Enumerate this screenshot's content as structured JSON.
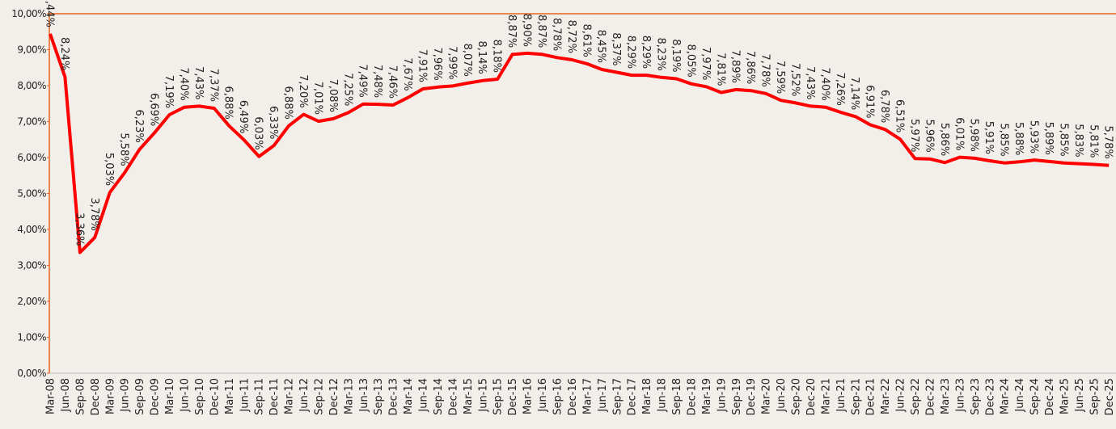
{
  "chart_data": {
    "type": "line",
    "categories": [
      "Mar-08",
      "Jun-08",
      "Sep-08",
      "Dec-08",
      "Mar-09",
      "Jun-09",
      "Sep-09",
      "Dec-09",
      "Mar-10",
      "Jun-10",
      "Sep-10",
      "Dec-10",
      "Mar-11",
      "Jun-11",
      "Sep-11",
      "Dec-11",
      "Mar-12",
      "Jun-12",
      "Sep-12",
      "Dec-12",
      "Mar-13",
      "Jun-13",
      "Sep-13",
      "Dec-13",
      "Mar-14",
      "Jun-14",
      "Sep-14",
      "Dec-14",
      "Mar-15",
      "Jun-15",
      "Sep-15",
      "Dec-15",
      "Mar-16",
      "Jun-16",
      "Sep-16",
      "Dec-16",
      "Mar-17",
      "Jun-17",
      "Sep-17",
      "Dec-17",
      "Mar-18",
      "Jun-18",
      "Sep-18",
      "Dec-18",
      "Mar-19",
      "Jun-19",
      "Sep-19",
      "Dec-19",
      "Mar-20",
      "Jun-20",
      "Sep-20",
      "Dec-20",
      "Mar-21",
      "Jun-21",
      "Sep-21",
      "Dec-21",
      "Mar-22",
      "Jun-22",
      "Sep-22",
      "Dec-22",
      "Mar-23",
      "Jun-23",
      "Sep-23",
      "Dec-23",
      "Mar-24",
      "Jun-24",
      "Sep-24",
      "Dec-24",
      "Mar-25",
      "Jun-25",
      "Sep-25",
      "Dec-25"
    ],
    "values": [
      9.44,
      8.24,
      3.36,
      3.78,
      5.03,
      5.58,
      6.23,
      6.69,
      7.19,
      7.4,
      7.43,
      7.37,
      6.88,
      6.49,
      6.03,
      6.33,
      6.88,
      7.2,
      7.01,
      7.08,
      7.25,
      7.49,
      7.48,
      7.46,
      7.67,
      7.91,
      7.96,
      7.99,
      8.07,
      8.14,
      8.18,
      8.87,
      8.9,
      8.87,
      8.78,
      8.72,
      8.61,
      8.45,
      8.37,
      8.29,
      8.29,
      8.23,
      8.19,
      8.05,
      7.97,
      7.81,
      7.89,
      7.86,
      7.78,
      7.59,
      7.52,
      7.43,
      7.4,
      7.26,
      7.14,
      6.91,
      6.78,
      6.51,
      5.97,
      5.96,
      5.86,
      6.01,
      5.98,
      5.91,
      5.85,
      5.88,
      5.93,
      5.89,
      5.85,
      5.83,
      5.81,
      5.78
    ],
    "value_labels": [
      "9,44%",
      "8,24%",
      "3,36%",
      "3,78%",
      "5,03%",
      "5,58%",
      "6,23%",
      "6,69%",
      "7,19%",
      "7,40%",
      "7,43%",
      "7,37%",
      "6,88%",
      "6,49%",
      "6,03%",
      "6,33%",
      "6,88%",
      "7,20%",
      "7,01%",
      "7,08%",
      "7,25%",
      "7,49%",
      "7,48%",
      "7,46%",
      "7,67%",
      "7,91%",
      "7,96%",
      "7,99%",
      "8,07%",
      "8,14%",
      "8,18%",
      "8,87%",
      "8,90%",
      "8,87%",
      "8,78%",
      "8,72%",
      "8,61%",
      "8,45%",
      "8,37%",
      "8,29%",
      "8,29%",
      "8,23%",
      "8,19%",
      "8,05%",
      "7,97%",
      "7,81%",
      "7,89%",
      "7,86%",
      "7,78%",
      "7,59%",
      "7,52%",
      "7,43%",
      "7,40%",
      "7,26%",
      "7,14%",
      "6,91%",
      "6,78%",
      "6,51%",
      "5,97%",
      "5,96%",
      "5,86%",
      "6,01%",
      "5,98%",
      "5,91%",
      "5,85%",
      "5,88%",
      "5,93%",
      "5,89%",
      "5,85%",
      "5,83%",
      "5,81%",
      "5,78%"
    ],
    "color": "#ff0000",
    "ylim": [
      0,
      10
    ],
    "yticks": [
      {
        "value": 0,
        "label": "0,00%"
      },
      {
        "value": 1,
        "label": "1,00%"
      },
      {
        "value": 2,
        "label": "2,00%"
      },
      {
        "value": 3,
        "label": "3,00%"
      },
      {
        "value": 4,
        "label": "4,00%"
      },
      {
        "value": 5,
        "label": "5,00%"
      },
      {
        "value": 6,
        "label": "6,00%"
      },
      {
        "value": 7,
        "label": "7,00%"
      },
      {
        "value": 8,
        "label": "8,00%"
      },
      {
        "value": 9,
        "label": "9,00%"
      },
      {
        "value": 10,
        "label": "10,00%"
      }
    ]
  }
}
